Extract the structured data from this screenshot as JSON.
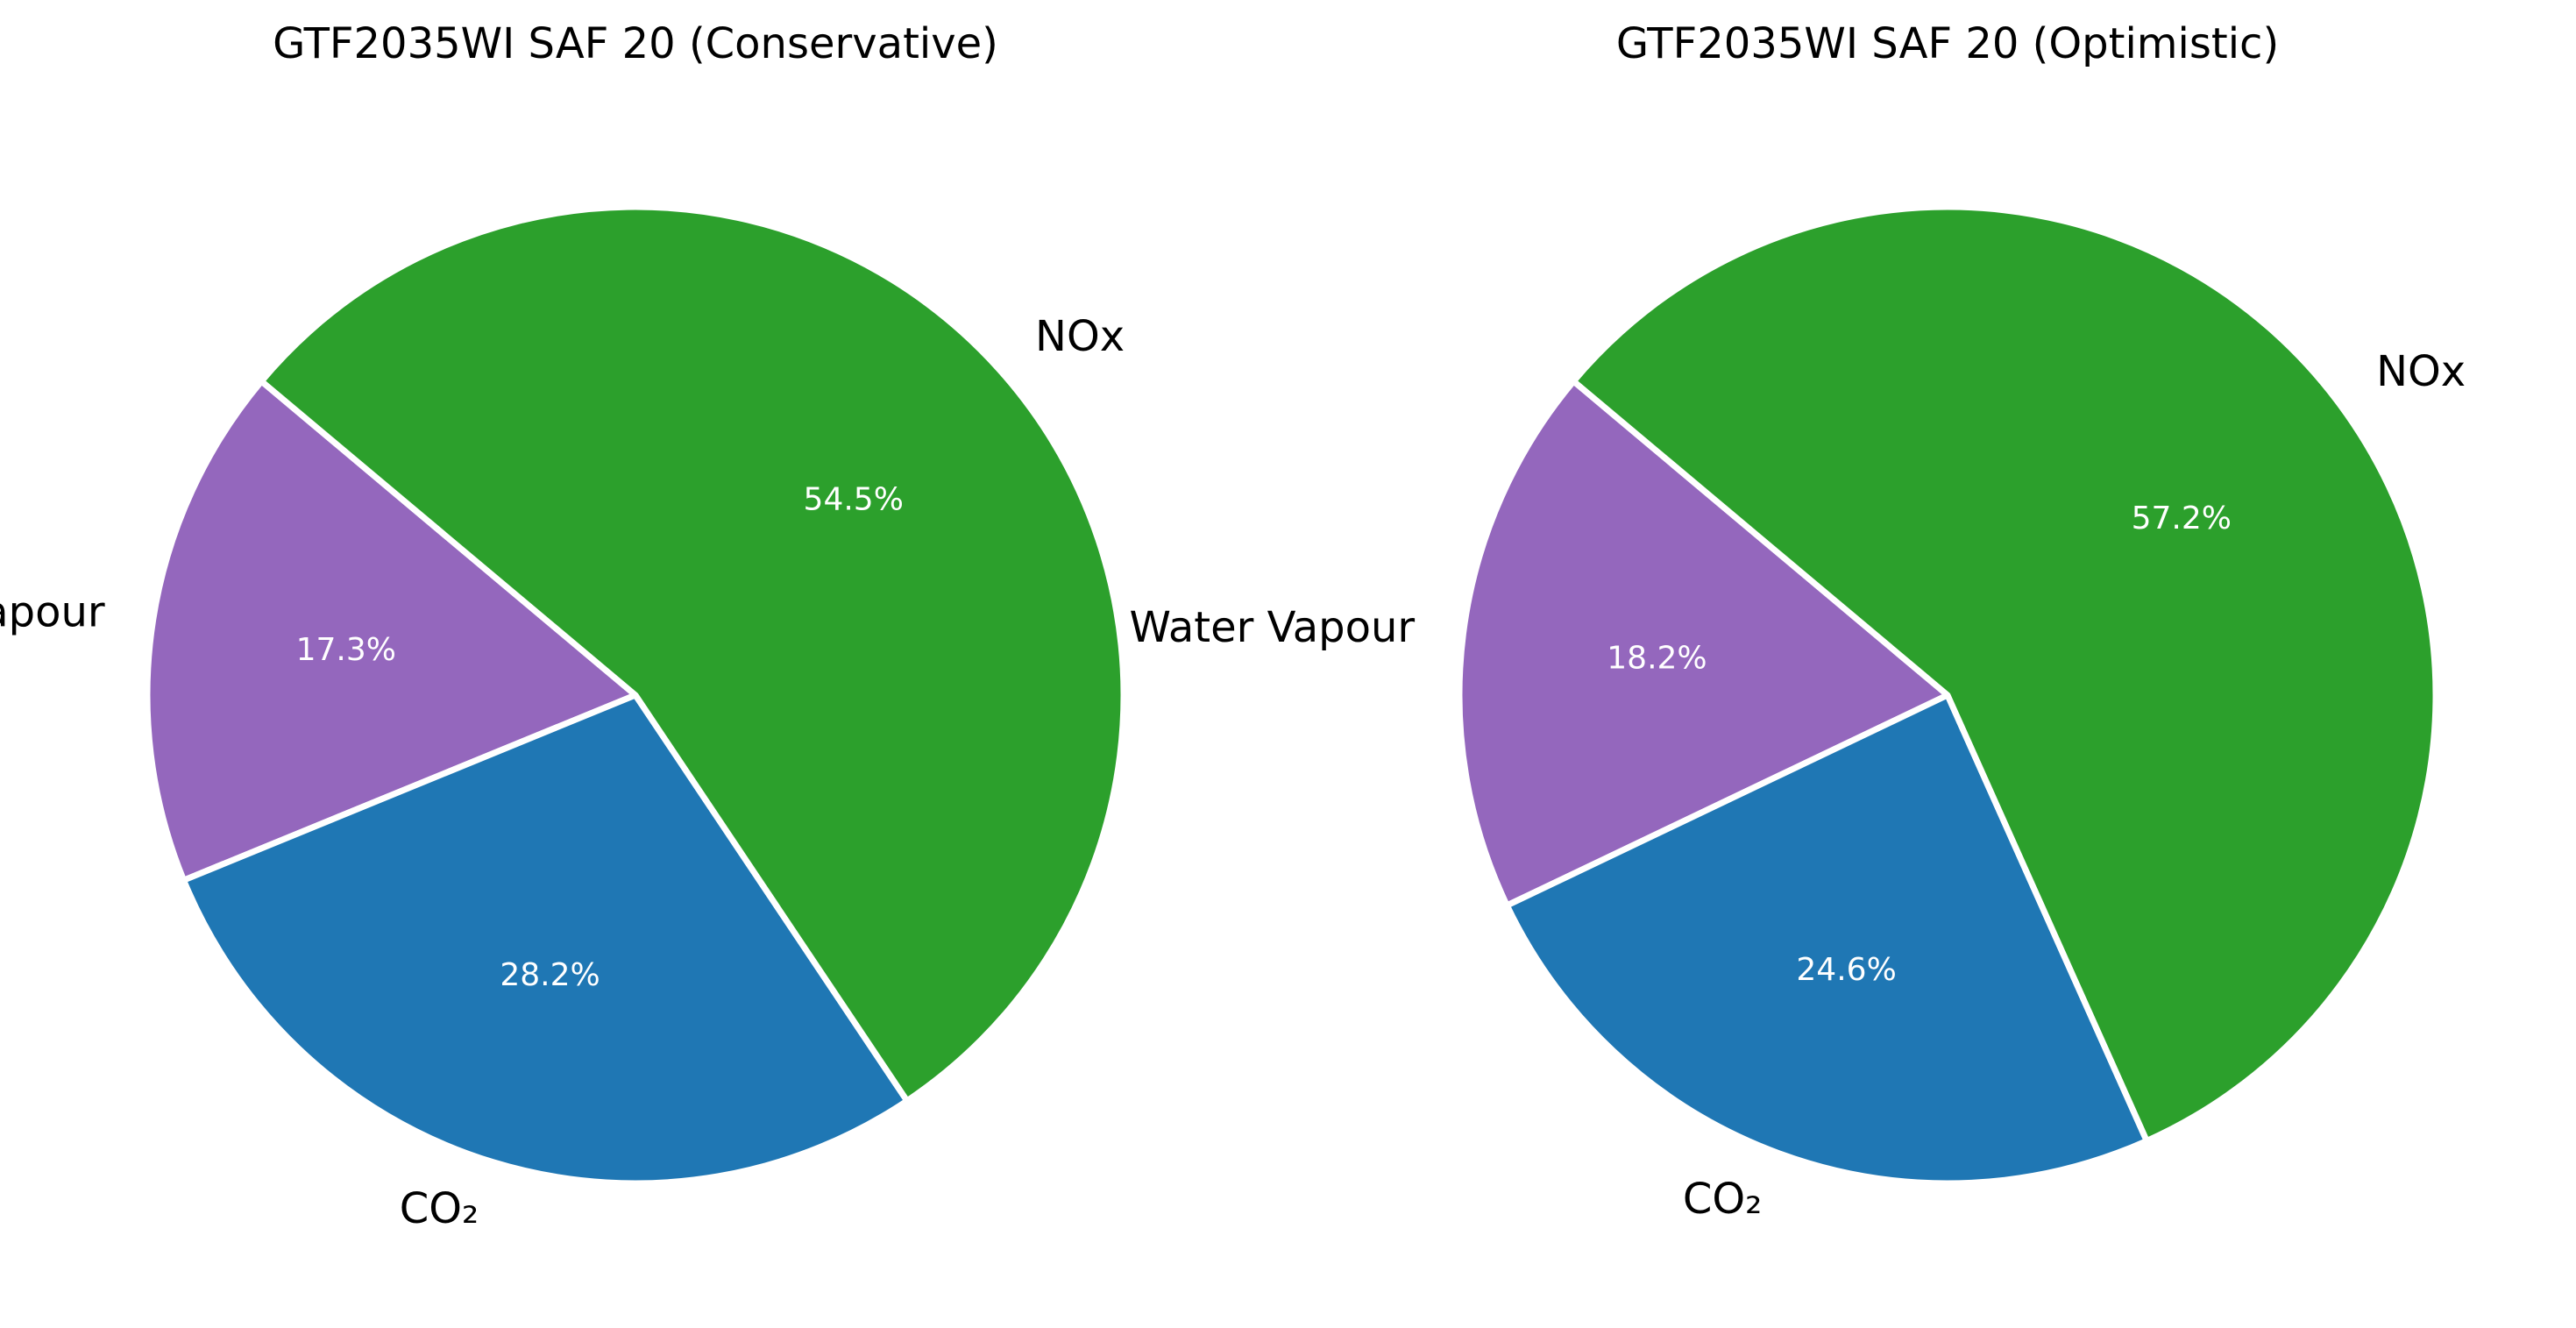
{
  "chart_data": [
    {
      "type": "pie",
      "title": "GTF2035WI SAF 20 (Conservative)",
      "slices": [
        {
          "label": "Water Vapour",
          "value": 17.3,
          "pct_label": "17.3%",
          "color": "#9467bd"
        },
        {
          "label": "CO₂",
          "value": 28.2,
          "pct_label": "28.2%",
          "color": "#1f77b4"
        },
        {
          "label": "NOx",
          "value": 54.5,
          "pct_label": "54.5%",
          "color": "#2ca02c"
        }
      ],
      "start_angle_deg": 140,
      "direction": "counterclockwise"
    },
    {
      "type": "pie",
      "title": "GTF2035WI SAF 20 (Optimistic)",
      "slices": [
        {
          "label": "Water Vapour",
          "value": 18.2,
          "pct_label": "18.2%",
          "color": "#9467bd"
        },
        {
          "label": "CO₂",
          "value": 24.6,
          "pct_label": "24.6%",
          "color": "#1f77b4"
        },
        {
          "label": "NOx",
          "value": 57.2,
          "pct_label": "57.2%",
          "color": "#2ca02c"
        }
      ],
      "start_angle_deg": 140,
      "direction": "counterclockwise"
    }
  ]
}
